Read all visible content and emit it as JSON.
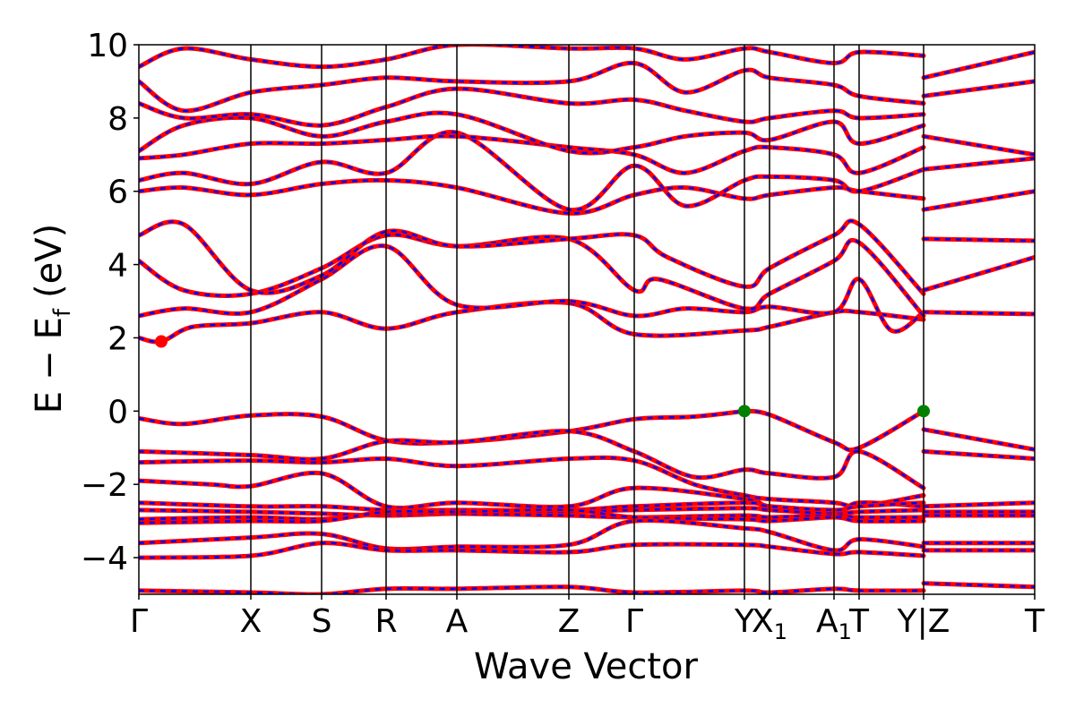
{
  "chart_data": {
    "type": "line",
    "title": "",
    "xlabel": "Wave Vector",
    "ylabel": "E − E_f (eV)",
    "ylabel_parts": {
      "E": "E",
      "minus": "−",
      "sub_f": "f",
      "unit": "(eV)"
    },
    "ylim": [
      -5,
      10
    ],
    "yticks": [
      -4,
      -2,
      0,
      2,
      4,
      6,
      8,
      10
    ],
    "ytick_labels": [
      "−4",
      "−2",
      "0",
      "2",
      "4",
      "6",
      "8",
      "10"
    ],
    "grid": false,
    "kpath_ticks": [
      {
        "pos": 0.0,
        "label": "Γ"
      },
      {
        "pos": 1.25,
        "label": "X"
      },
      {
        "pos": 2.04,
        "label": "S"
      },
      {
        "pos": 2.76,
        "label": "R"
      },
      {
        "pos": 3.55,
        "label": "A"
      },
      {
        "pos": 4.8,
        "label": "Z"
      },
      {
        "pos": 5.53,
        "label": "Γ"
      },
      {
        "pos": 6.76,
        "label": "Y"
      },
      {
        "pos": 7.04,
        "label": "X",
        "sub": "1"
      },
      {
        "pos": 7.76,
        "label": "A",
        "sub": "1"
      },
      {
        "pos": 8.04,
        "label": "T"
      },
      {
        "pos": 8.76,
        "label": "Y|Z"
      },
      {
        "pos": 10.0,
        "label": "T"
      }
    ],
    "series": [
      {
        "color": "#ff0000",
        "style": "solid"
      },
      {
        "color": "#0000ff",
        "style": "dashed"
      }
    ],
    "bands": [
      {
        "x": [
          0,
          0.5,
          1.25,
          2.04,
          2.76,
          3.55,
          4.8,
          5.53,
          6.2,
          6.76
        ],
        "y": [
          -0.2,
          -0.35,
          -0.12,
          -0.15,
          -0.8,
          -0.85,
          -0.55,
          -0.22,
          -0.15,
          0.0
        ]
      },
      {
        "x": [
          6.76,
          7.04,
          7.76,
          8.04,
          8.76
        ],
        "y": [
          0.0,
          -0.1,
          -0.85,
          -1.0,
          0.0
        ]
      },
      {
        "x": [
          8.76,
          10.0
        ],
        "y": [
          -0.5,
          -1.05
        ]
      },
      {
        "x": [
          0,
          1.25,
          2.04,
          2.76,
          3.55,
          4.8,
          5.53,
          6.2,
          6.76,
          7.04,
          7.76,
          8.04,
          8.76
        ],
        "y": [
          -1.1,
          -1.2,
          -1.3,
          -0.82,
          -0.85,
          -0.55,
          -1.1,
          -1.8,
          -1.6,
          -1.7,
          -1.8,
          -1.1,
          -2.1
        ]
      },
      {
        "x": [
          0,
          1.25,
          2.04,
          2.76,
          3.55,
          4.8,
          5.53,
          6.2,
          6.76,
          7.04,
          7.76,
          8.04,
          8.76
        ],
        "y": [
          -1.4,
          -1.35,
          -1.4,
          -1.3,
          -1.5,
          -1.3,
          -1.35,
          -2.0,
          -2.3,
          -2.4,
          -2.5,
          -2.6,
          -2.3
        ]
      },
      {
        "x": [
          8.76,
          10.0
        ],
        "y": [
          -1.1,
          -1.3
        ]
      },
      {
        "x": [
          0,
          0.8,
          1.25,
          2.04,
          2.76,
          3.55,
          4.8,
          5.53,
          6.76,
          7.04,
          7.76,
          8.04,
          8.76
        ],
        "y": [
          -1.9,
          -2.0,
          -2.05,
          -1.7,
          -2.6,
          -2.5,
          -2.6,
          -2.1,
          -2.4,
          -2.6,
          -2.8,
          -2.5,
          -2.6
        ]
      },
      {
        "x": [
          0,
          1.25,
          2.04,
          2.76,
          3.55,
          4.8,
          5.53,
          6.76,
          7.04,
          7.76,
          8.04,
          8.76
        ],
        "y": [
          -2.5,
          -2.6,
          -2.6,
          -2.7,
          -2.7,
          -2.7,
          -2.6,
          -2.5,
          -2.6,
          -2.7,
          -2.6,
          -2.5
        ]
      },
      {
        "x": [
          0,
          1.25,
          2.04,
          2.76,
          3.55,
          4.8,
          5.53,
          6.76,
          7.04,
          7.76,
          8.04,
          8.76
        ],
        "y": [
          -2.7,
          -2.75,
          -2.8,
          -2.85,
          -2.8,
          -2.75,
          -2.7,
          -2.65,
          -2.7,
          -2.8,
          -2.75,
          -2.7
        ]
      },
      {
        "x": [
          0,
          1.25,
          2.04,
          2.76,
          3.55,
          4.8,
          5.53,
          6.76,
          7.04,
          7.76,
          8.04,
          8.76
        ],
        "y": [
          -2.95,
          -2.9,
          -2.95,
          -2.8,
          -2.8,
          -2.85,
          -2.9,
          -2.85,
          -2.9,
          -2.85,
          -2.9,
          -2.9
        ]
      },
      {
        "x": [
          0,
          1.25,
          2.04,
          2.76,
          3.55,
          4.8,
          5.53,
          6.76,
          7.04,
          7.76,
          8.04,
          8.76
        ],
        "y": [
          -3.05,
          -3.0,
          -3.0,
          -2.75,
          -2.75,
          -2.7,
          -2.9,
          -2.95,
          -3.0,
          -2.9,
          -3.0,
          -3.0
        ]
      },
      {
        "x": [
          8.76,
          10.0
        ],
        "y": [
          -2.6,
          -2.5
        ]
      },
      {
        "x": [
          8.76,
          10.0
        ],
        "y": [
          -2.75,
          -2.75
        ]
      },
      {
        "x": [
          8.76,
          10.0
        ],
        "y": [
          -2.85,
          -2.85
        ]
      },
      {
        "x": [
          0,
          1.25,
          2.04,
          2.76,
          3.55,
          4.8,
          5.53,
          6.76,
          7.04,
          7.76,
          8.04,
          8.76
        ],
        "y": [
          -3.6,
          -3.45,
          -3.35,
          -3.75,
          -3.7,
          -3.65,
          -3.0,
          -3.2,
          -3.3,
          -3.8,
          -3.5,
          -3.7
        ]
      },
      {
        "x": [
          0,
          1.25,
          2.04,
          2.76,
          3.55,
          4.8,
          5.53,
          6.76,
          7.04,
          7.76,
          8.04,
          8.76
        ],
        "y": [
          -4.0,
          -3.95,
          -3.6,
          -3.8,
          -3.8,
          -3.85,
          -3.65,
          -3.65,
          -3.7,
          -3.9,
          -3.85,
          -3.95
        ]
      },
      {
        "x": [
          8.76,
          10.0
        ],
        "y": [
          -3.6,
          -3.6
        ]
      },
      {
        "x": [
          8.76,
          10.0
        ],
        "y": [
          -3.8,
          -3.8
        ]
      },
      {
        "x": [
          0,
          1.25,
          2.04,
          2.76,
          3.55,
          4.8,
          5.53,
          6.76,
          7.04,
          7.76,
          8.04,
          8.76
        ],
        "y": [
          -4.9,
          -4.95,
          -5.0,
          -4.85,
          -4.85,
          -4.8,
          -4.95,
          -4.9,
          -4.95,
          -4.85,
          -4.9,
          -4.9
        ]
      },
      {
        "x": [
          8.76,
          10.0
        ],
        "y": [
          -4.7,
          -4.8
        ]
      },
      {
        "x": [
          0,
          0.25,
          0.6,
          1.25,
          2.04,
          2.76,
          3.55,
          4.8,
          5.53,
          6.76,
          7.04,
          7.76,
          8.04,
          8.76
        ],
        "y": [
          2.0,
          1.9,
          2.3,
          2.4,
          2.7,
          2.25,
          2.7,
          2.95,
          2.1,
          2.2,
          2.3,
          2.7,
          2.7,
          2.5
        ]
      },
      {
        "x": [
          0,
          0.5,
          1.25,
          2.04,
          2.76,
          3.55,
          4.8,
          5.53,
          6.1,
          6.76,
          7.04,
          7.76,
          8.04,
          8.4,
          8.76
        ],
        "y": [
          2.6,
          2.8,
          2.7,
          3.6,
          4.5,
          2.9,
          3.0,
          2.6,
          2.8,
          2.7,
          2.85,
          2.7,
          3.6,
          2.2,
          2.7
        ]
      },
      {
        "x": [
          0,
          0.5,
          1.25,
          2.04,
          2.76,
          3.55,
          4.8,
          5.53,
          5.8,
          6.76,
          7.04,
          7.76,
          8.04,
          8.76
        ],
        "y": [
          4.1,
          3.3,
          3.2,
          3.9,
          4.8,
          4.5,
          4.7,
          3.3,
          3.6,
          2.8,
          3.2,
          4.1,
          4.6,
          2.6
        ]
      },
      {
        "x": [
          0,
          0.5,
          1.25,
          2.04,
          2.76,
          3.55,
          4.8,
          5.53,
          5.9,
          6.76,
          7.04,
          7.76,
          8.04,
          8.76
        ],
        "y": [
          4.8,
          5.1,
          3.3,
          3.7,
          4.9,
          4.5,
          4.7,
          4.8,
          4.2,
          3.4,
          3.9,
          4.8,
          5.1,
          3.2
        ]
      },
      {
        "x": [
          8.76,
          10.0
        ],
        "y": [
          2.7,
          2.65
        ]
      },
      {
        "x": [
          8.76,
          10.0
        ],
        "y": [
          3.3,
          4.2
        ]
      },
      {
        "x": [
          8.76,
          10.0
        ],
        "y": [
          4.7,
          4.65
        ]
      },
      {
        "x": [
          0,
          0.5,
          1.25,
          2.04,
          2.76,
          3.55,
          4.8,
          5.53,
          6.1,
          6.76,
          7.04,
          7.76,
          8.04,
          8.76
        ],
        "y": [
          6.0,
          6.1,
          5.9,
          6.2,
          6.3,
          6.1,
          5.4,
          5.9,
          6.1,
          5.8,
          5.9,
          6.1,
          6.0,
          5.8
        ]
      },
      {
        "x": [
          0,
          0.5,
          1.25,
          2.04,
          2.76,
          3.55,
          4.8,
          5.53,
          6.1,
          6.76,
          7.04,
          7.76,
          8.04,
          8.76
        ],
        "y": [
          6.3,
          6.5,
          6.2,
          6.8,
          6.5,
          7.6,
          5.5,
          6.7,
          5.6,
          6.3,
          6.4,
          6.3,
          6.0,
          6.6
        ]
      },
      {
        "x": [
          0,
          0.5,
          1.25,
          2.04,
          2.76,
          3.55,
          4.8,
          5.53,
          6.1,
          6.76,
          7.04,
          7.76,
          8.04,
          8.76
        ],
        "y": [
          6.9,
          7.0,
          7.3,
          7.3,
          7.4,
          7.5,
          7.2,
          7.0,
          6.5,
          7.1,
          7.2,
          7.0,
          6.5,
          7.2
        ]
      },
      {
        "x": [
          0,
          0.5,
          1.25,
          2.04,
          2.76,
          3.55,
          4.8,
          5.53,
          6.1,
          6.76,
          7.04,
          7.76,
          8.04,
          8.76
        ],
        "y": [
          7.1,
          7.8,
          8.0,
          7.5,
          7.9,
          8.1,
          7.1,
          7.2,
          7.5,
          7.6,
          7.4,
          7.9,
          7.3,
          7.8
        ]
      },
      {
        "x": [
          0,
          0.5,
          1.25,
          2.04,
          2.76,
          3.55,
          4.8,
          5.53,
          6.1,
          6.76,
          7.04,
          7.76,
          8.04,
          8.76
        ],
        "y": [
          8.4,
          8.0,
          8.1,
          7.8,
          8.3,
          8.8,
          8.4,
          8.5,
          8.2,
          7.9,
          8.0,
          8.2,
          8.0,
          8.1
        ]
      },
      {
        "x": [
          0,
          0.5,
          1.25,
          2.04,
          2.76,
          3.55,
          4.8,
          5.53,
          6.1,
          6.76,
          7.04,
          7.76,
          8.04,
          8.76
        ],
        "y": [
          9.0,
          8.2,
          8.7,
          8.9,
          9.1,
          9.0,
          9.0,
          9.5,
          8.7,
          9.3,
          9.1,
          8.9,
          8.6,
          8.4
        ]
      },
      {
        "x": [
          0,
          0.5,
          1.25,
          2.04,
          2.76,
          3.55,
          4.8,
          5.53,
          6.1,
          6.76,
          7.04,
          7.76,
          8.04,
          8.76
        ],
        "y": [
          9.4,
          9.9,
          9.6,
          9.4,
          9.6,
          10.0,
          9.9,
          9.9,
          9.6,
          9.9,
          9.8,
          9.5,
          9.8,
          9.7
        ]
      },
      {
        "x": [
          8.76,
          10.0
        ],
        "y": [
          5.5,
          6.0
        ]
      },
      {
        "x": [
          8.76,
          10.0
        ],
        "y": [
          6.6,
          6.9
        ]
      },
      {
        "x": [
          8.76,
          10.0
        ],
        "y": [
          7.5,
          7.0
        ]
      },
      {
        "x": [
          8.76,
          10.0
        ],
        "y": [
          8.6,
          9.0
        ]
      },
      {
        "x": [
          8.76,
          10.0
        ],
        "y": [
          9.1,
          9.8
        ]
      }
    ],
    "markers": [
      {
        "x": 0.25,
        "y": 1.9,
        "color": "#ff0000"
      },
      {
        "x": 6.76,
        "y": 0.0,
        "color": "#008000"
      },
      {
        "x": 8.76,
        "y": 0.0,
        "color": "#008000"
      }
    ]
  }
}
